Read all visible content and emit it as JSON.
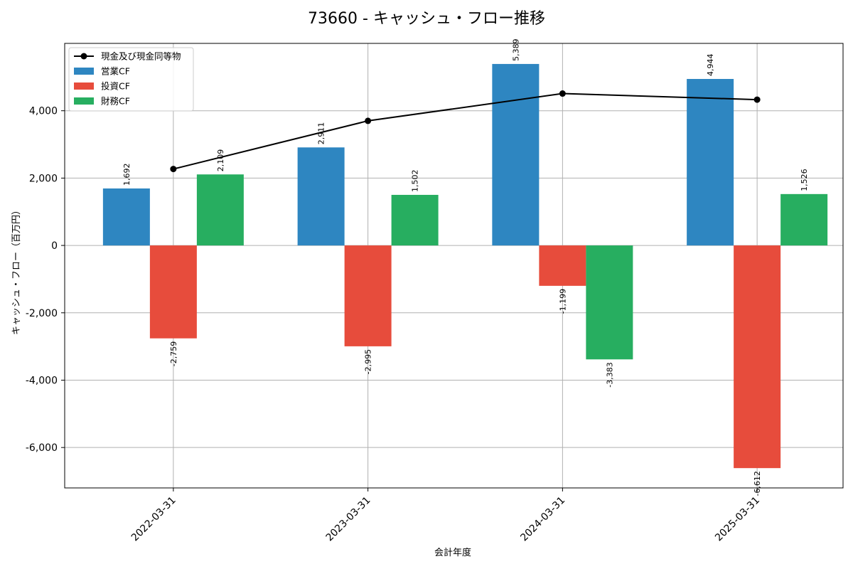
{
  "chart_data": {
    "type": "bar",
    "title": "73660 - キャッシュ・フロー推移",
    "xlabel": "会計年度",
    "ylabel": "キャッシュ・フロー（百万円）",
    "categories": [
      "2022-03-31",
      "2023-03-31",
      "2024-03-31",
      "2025-03-31"
    ],
    "ylim": [
      -7200,
      6000
    ],
    "yticks": [
      -6000,
      -4000,
      -2000,
      0,
      2000,
      4000
    ],
    "ytick_labels": [
      "-6,000",
      "-4,000",
      "-2,000",
      "0",
      "2,000",
      "4,000"
    ],
    "grid": true,
    "legend_position": "top-left",
    "series": [
      {
        "name": "営業CF",
        "type": "bar",
        "color": "#2e86c1",
        "values": [
          1692,
          2911,
          5389,
          4944
        ],
        "labels": [
          "1,692",
          "2,911",
          "5,389",
          "4,944"
        ]
      },
      {
        "name": "投資CF",
        "type": "bar",
        "color": "#e74c3c",
        "values": [
          -2759,
          -2995,
          -1199,
          -6612
        ],
        "labels": [
          "-2,759",
          "-2,995",
          "-1,199",
          "-6,612"
        ]
      },
      {
        "name": "財務CF",
        "type": "bar",
        "color": "#27ae60",
        "values": [
          2109,
          1502,
          -3383,
          1526
        ],
        "labels": [
          "2,109",
          "1,502",
          "-3,383",
          "1,526"
        ]
      },
      {
        "name": "現金及び現金同等物",
        "type": "line",
        "color": "#000000",
        "values": [
          2270,
          3700,
          4510,
          4330
        ]
      }
    ]
  }
}
